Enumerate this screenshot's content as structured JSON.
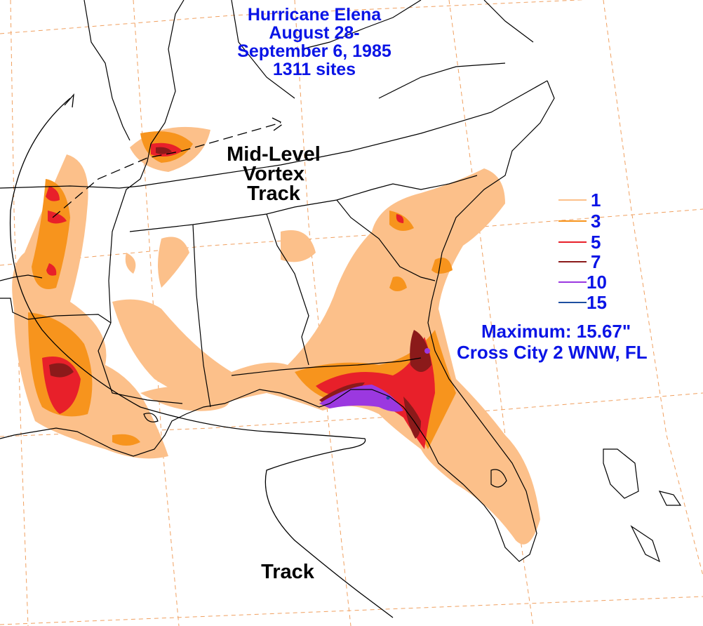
{
  "title": {
    "line1": "Hurricane Elena",
    "line2": "August 28-",
    "line3": "September 6, 1985",
    "line4": "1311 sites"
  },
  "labels": {
    "vortex1": "Mid-Level",
    "vortex2": "Vortex",
    "vortex3": "Track",
    "track": "Track"
  },
  "legend": [
    {
      "label": "1",
      "color": "#fcc08a"
    },
    {
      "label": "3",
      "color": "#f7941d"
    },
    {
      "label": "5",
      "color": "#e8202a"
    },
    {
      "label": "7",
      "color": "#8b1a1a"
    },
    {
      "label": "10",
      "color": "#9b38e0"
    },
    {
      "label": "15",
      "color": "#1e4fa0"
    }
  ],
  "maximum": {
    "line1": "Maximum:  15.67\"",
    "line2": "Cross City 2 WNW, FL"
  },
  "colors": {
    "text_blue": "#0a14e6",
    "grid": "#f0a060",
    "border": "#000000"
  }
}
